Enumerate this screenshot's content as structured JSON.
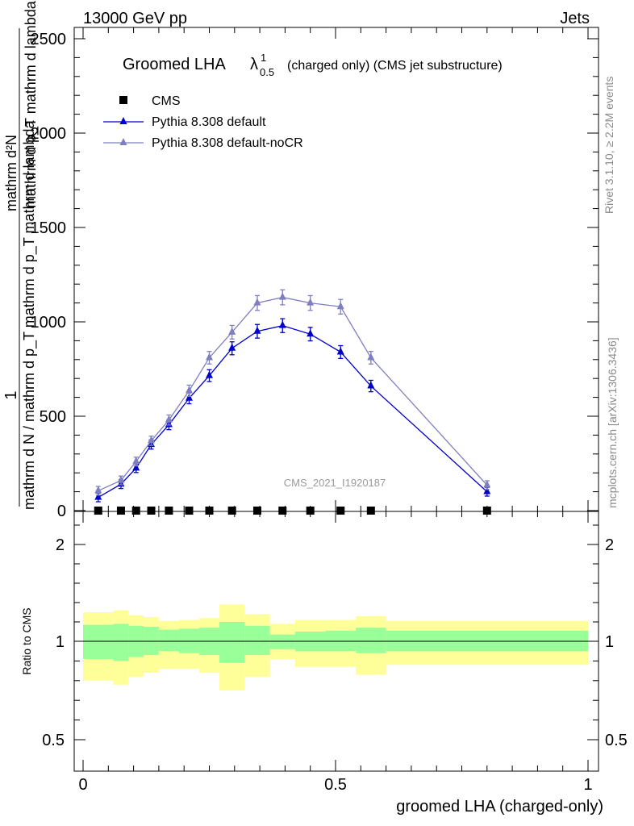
{
  "header": {
    "energy_label": "13000 GeV pp",
    "process_label": "Jets"
  },
  "chart_data": [
    {
      "type": "line",
      "title_main": "Groomed LHA",
      "title_lambda": "λ",
      "title_sup": "1",
      "title_sub": "0.5",
      "title_rest": "(charged only) (CMS jet substructure)",
      "ylabel_numerator": "1",
      "ylabel_denominator": "mathrm d N / mathrm d p_T mathrm d p_T mathrm d lambda",
      "ylabel_top": "mathrm d²N",
      "ylabel_top_denominator": "mathrm d p_T mathrm d lambda",
      "ylim": [
        0,
        2550
      ],
      "yticks": [
        0,
        500,
        1000,
        1500,
        2000,
        2500
      ],
      "ytick_labels": [
        "0",
        "500",
        "1000",
        "1500",
        "2000",
        "2500"
      ],
      "xlim": [
        0,
        1
      ],
      "watermark": "CMS_2021_I1920187",
      "legend_position": "top-left",
      "series": [
        {
          "name": "CMS",
          "color": "#000000",
          "marker": "square",
          "x": [
            0.03,
            0.075,
            0.105,
            0.135,
            0.17,
            0.21,
            0.25,
            0.295,
            0.345,
            0.395,
            0.45,
            0.51,
            0.57,
            0.8
          ],
          "y": [
            0,
            0,
            0,
            0,
            0,
            0,
            0,
            0,
            0,
            0,
            0,
            0,
            0,
            0
          ]
        },
        {
          "name": "Pythia 8.308 default",
          "color": "#0000cc",
          "marker": "triangle",
          "x": [
            0.03,
            0.075,
            0.105,
            0.135,
            0.17,
            0.21,
            0.25,
            0.295,
            0.345,
            0.395,
            0.45,
            0.51,
            0.57,
            0.8
          ],
          "y": [
            70,
            140,
            225,
            350,
            455,
            595,
            715,
            860,
            950,
            980,
            935,
            840,
            660,
            100
          ]
        },
        {
          "name": "Pythia 8.308 default-noCR",
          "color": "#7f7fbf",
          "marker": "triangle",
          "x": [
            0.03,
            0.075,
            0.105,
            0.135,
            0.17,
            0.21,
            0.25,
            0.295,
            0.345,
            0.395,
            0.45,
            0.51,
            0.57,
            0.8
          ],
          "y": [
            105,
            160,
            260,
            370,
            480,
            635,
            810,
            945,
            1100,
            1130,
            1100,
            1080,
            810,
            135
          ]
        }
      ]
    },
    {
      "type": "area",
      "ylabel": "Ratio to CMS",
      "xlabel": "groomed LHA (charged-only)",
      "xlim": [
        0,
        1
      ],
      "ylim": [
        0.4,
        2.3
      ],
      "yticks": [
        0.5,
        1,
        2
      ],
      "ytick_labels": [
        "0.5",
        "1",
        "2"
      ],
      "xticks": [
        0,
        0.5,
        1
      ],
      "xtick_labels": [
        "0",
        "0.5",
        "1"
      ],
      "band_colors": {
        "inner": "#99ff99",
        "outer": "#ffff99"
      },
      "bins": [
        {
          "lo": 0.0,
          "hi": 0.06,
          "in_lo": 0.91,
          "in_hi": 1.17,
          "out_lo": 0.8,
          "out_hi": 1.3
        },
        {
          "lo": 0.06,
          "hi": 0.09,
          "in_lo": 0.9,
          "in_hi": 1.18,
          "out_lo": 0.78,
          "out_hi": 1.32
        },
        {
          "lo": 0.09,
          "hi": 0.12,
          "in_lo": 0.92,
          "in_hi": 1.16,
          "out_lo": 0.82,
          "out_hi": 1.27
        },
        {
          "lo": 0.12,
          "hi": 0.15,
          "in_lo": 0.93,
          "in_hi": 1.15,
          "out_lo": 0.84,
          "out_hi": 1.25
        },
        {
          "lo": 0.15,
          "hi": 0.19,
          "in_lo": 0.95,
          "in_hi": 1.12,
          "out_lo": 0.86,
          "out_hi": 1.21
        },
        {
          "lo": 0.19,
          "hi": 0.23,
          "in_lo": 0.94,
          "in_hi": 1.13,
          "out_lo": 0.86,
          "out_hi": 1.22
        },
        {
          "lo": 0.23,
          "hi": 0.27,
          "in_lo": 0.93,
          "in_hi": 1.14,
          "out_lo": 0.84,
          "out_hi": 1.24
        },
        {
          "lo": 0.27,
          "hi": 0.32,
          "in_lo": 0.89,
          "in_hi": 1.2,
          "out_lo": 0.75,
          "out_hi": 1.38
        },
        {
          "lo": 0.32,
          "hi": 0.37,
          "in_lo": 0.93,
          "in_hi": 1.16,
          "out_lo": 0.82,
          "out_hi": 1.28
        },
        {
          "lo": 0.37,
          "hi": 0.42,
          "in_lo": 0.96,
          "in_hi": 1.07,
          "out_lo": 0.91,
          "out_hi": 1.18
        },
        {
          "lo": 0.42,
          "hi": 0.48,
          "in_lo": 0.95,
          "in_hi": 1.1,
          "out_lo": 0.87,
          "out_hi": 1.22
        },
        {
          "lo": 0.48,
          "hi": 0.54,
          "in_lo": 0.95,
          "in_hi": 1.11,
          "out_lo": 0.87,
          "out_hi": 1.22
        },
        {
          "lo": 0.54,
          "hi": 0.6,
          "in_lo": 0.94,
          "in_hi": 1.14,
          "out_lo": 0.83,
          "out_hi": 1.26
        },
        {
          "lo": 0.6,
          "hi": 1.0,
          "in_lo": 0.95,
          "in_hi": 1.11,
          "out_lo": 0.88,
          "out_hi": 1.21
        }
      ],
      "reference_line": 1
    }
  ],
  "side_labels": {
    "rivet": "Rivet 3.1.10, ≥ 2.2M events",
    "mcplots": "mcplots.cern.ch [arXiv:1306.3436]"
  }
}
